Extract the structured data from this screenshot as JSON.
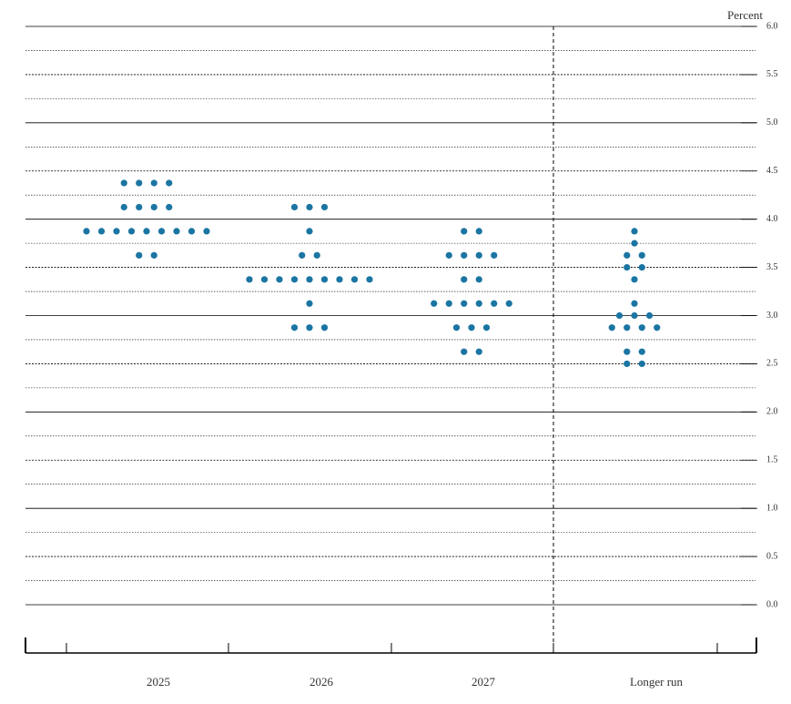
{
  "chart_data": {
    "type": "dot_plot",
    "ylabel": "Percent",
    "categories": [
      "2025",
      "2026",
      "2027",
      "Longer run"
    ],
    "values": [
      [
        4.375,
        4.375,
        4.375,
        4.375,
        4.125,
        4.125,
        4.125,
        4.125,
        3.875,
        3.875,
        3.875,
        3.875,
        3.875,
        3.875,
        3.875,
        3.875,
        3.875,
        3.625,
        3.625
      ],
      [
        4.125,
        4.125,
        4.125,
        3.875,
        3.625,
        3.625,
        3.375,
        3.375,
        3.375,
        3.375,
        3.375,
        3.375,
        3.375,
        3.375,
        3.375,
        3.125,
        2.875,
        2.875,
        2.875
      ],
      [
        3.875,
        3.875,
        3.625,
        3.625,
        3.625,
        3.625,
        3.375,
        3.375,
        3.125,
        3.125,
        3.125,
        3.125,
        3.125,
        3.125,
        2.875,
        2.875,
        2.875,
        2.625,
        2.625
      ],
      [
        3.875,
        3.75,
        3.625,
        3.625,
        3.5,
        3.5,
        3.375,
        3.125,
        3.0,
        3.0,
        3.0,
        2.875,
        2.875,
        2.875,
        2.875,
        2.625,
        2.625,
        2.5,
        2.5
      ]
    ],
    "color": "#1b75a3",
    "ylim": [
      0,
      6
    ],
    "yticks": [
      {
        "value": 0,
        "label": "0.0"
      },
      0.5,
      {
        "value": 1,
        "label": "1.0"
      },
      1.5,
      {
        "value": 2,
        "label": "2.0"
      },
      2.5,
      {
        "value": 3,
        "label": "3.0"
      },
      3.5,
      {
        "value": 4,
        "label": "4.0"
      },
      4.5,
      {
        "value": 5,
        "label": "5.0"
      },
      5.5,
      {
        "value": 6,
        "label": "6.0"
      }
    ],
    "grid": true
  }
}
